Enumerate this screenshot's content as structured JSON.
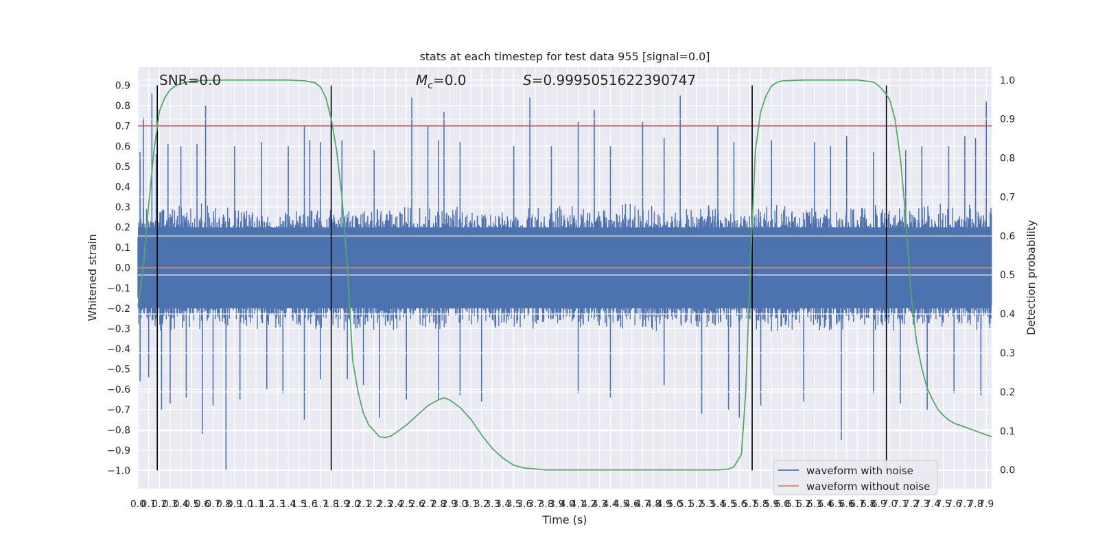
{
  "chart_data": {
    "type": "line",
    "title": "stats at each timestep for test data 955 [signal=0.0]",
    "xlabel": "Time (s)",
    "ylabel_left": "Whitened strain",
    "ylabel_right": "Detection probability",
    "xlim": [
      0.0,
      7.95
    ],
    "ylim_left": [
      -1.09,
      0.99
    ],
    "ylim_right": [
      -0.048,
      1.033
    ],
    "x_ticks": [
      "0.0",
      "0.1",
      "0.2",
      "0.3",
      "0.4",
      "0.5",
      "0.6",
      "0.7",
      "0.8",
      "0.9",
      "1.0",
      "1.1",
      "1.2",
      "1.3",
      "1.4",
      "1.5",
      "1.6",
      "1.7",
      "1.8",
      "1.9",
      "2.0",
      "2.1",
      "2.2",
      "2.3",
      "2.4",
      "2.5",
      "2.6",
      "2.7",
      "2.8",
      "2.9",
      "3.0",
      "3.1",
      "3.2",
      "3.3",
      "3.4",
      "3.5",
      "3.6",
      "3.7",
      "3.8",
      "3.9",
      "4.0",
      "4.1",
      "4.2",
      "4.3",
      "4.4",
      "4.5",
      "4.6",
      "4.7",
      "4.8",
      "4.9",
      "5.0",
      "5.1",
      "5.2",
      "5.3",
      "5.4",
      "5.5",
      "5.6",
      "5.7",
      "5.8",
      "5.9",
      "6.0",
      "6.1",
      "6.2",
      "6.3",
      "6.4",
      "6.5",
      "6.6",
      "6.7",
      "6.8",
      "6.9",
      "7.0",
      "7.1",
      "7.2",
      "7.3",
      "7.4",
      "7.5",
      "7.6",
      "7.7",
      "7.8",
      "7.9"
    ],
    "y_ticks_left": [
      "0.9",
      "0.8",
      "0.7",
      "0.6",
      "0.5",
      "0.4",
      "0.3",
      "0.2",
      "0.1",
      "0.0",
      "−0.1",
      "−0.2",
      "−0.3",
      "−0.4",
      "−0.5",
      "−0.6",
      "−0.7",
      "−0.8",
      "−0.9",
      "−1.0"
    ],
    "y_ticks_right": [
      "1.0",
      "0.9",
      "0.8",
      "0.7",
      "0.6",
      "0.5",
      "0.4",
      "0.3",
      "0.2",
      "0.1",
      "0.0"
    ],
    "annotations": {
      "snr": "SNR=0.0",
      "mc_symbol": "M",
      "mc_sub": "c",
      "mc_value": "=0.0",
      "s_symbol": "S",
      "s_value": "=0.9995051622390747"
    },
    "threshold": 0.7,
    "vlines": [
      0.18,
      1.8,
      5.72,
      6.97
    ],
    "legend": {
      "location": "lower right",
      "entries": [
        "waveform with noise",
        "waveform without noise"
      ]
    },
    "series": [
      {
        "name": "waveform with noise",
        "color": "#4c72b0",
        "axis": "left",
        "noise_amplitude": 0.32
      },
      {
        "name": "waveform without noise",
        "color": "#dd8452",
        "axis": "left",
        "values": [
          [
            0.0,
            0.0
          ],
          [
            7.95,
            0.0
          ]
        ]
      },
      {
        "color": "#55a868",
        "axis": "right",
        "points": [
          [
            0.0,
            0.42
          ],
          [
            0.05,
            0.52
          ],
          [
            0.1,
            0.68
          ],
          [
            0.15,
            0.82
          ],
          [
            0.2,
            0.92
          ],
          [
            0.25,
            0.955
          ],
          [
            0.3,
            0.975
          ],
          [
            0.35,
            0.985
          ],
          [
            0.4,
            0.991
          ],
          [
            0.5,
            0.997
          ],
          [
            0.6,
            0.999
          ],
          [
            0.8,
            1.0
          ],
          [
            1.0,
            1.0
          ],
          [
            1.2,
            1.0
          ],
          [
            1.4,
            1.0
          ],
          [
            1.55,
            0.998
          ],
          [
            1.65,
            0.993
          ],
          [
            1.7,
            0.982
          ],
          [
            1.75,
            0.955
          ],
          [
            1.8,
            0.9
          ],
          [
            1.85,
            0.82
          ],
          [
            1.9,
            0.7
          ],
          [
            1.95,
            0.52
          ],
          [
            2.0,
            0.28
          ],
          [
            2.05,
            0.2
          ],
          [
            2.1,
            0.145
          ],
          [
            2.15,
            0.115
          ],
          [
            2.2,
            0.1
          ],
          [
            2.25,
            0.085
          ],
          [
            2.3,
            0.083
          ],
          [
            2.35,
            0.086
          ],
          [
            2.4,
            0.095
          ],
          [
            2.5,
            0.115
          ],
          [
            2.6,
            0.14
          ],
          [
            2.7,
            0.165
          ],
          [
            2.8,
            0.18
          ],
          [
            2.85,
            0.185
          ],
          [
            2.9,
            0.18
          ],
          [
            3.0,
            0.16
          ],
          [
            3.1,
            0.13
          ],
          [
            3.2,
            0.09
          ],
          [
            3.3,
            0.055
          ],
          [
            3.4,
            0.03
          ],
          [
            3.5,
            0.012
          ],
          [
            3.6,
            0.005
          ],
          [
            3.8,
            0.0
          ],
          [
            4.5,
            0.0
          ],
          [
            5.0,
            0.0
          ],
          [
            5.4,
            0.0
          ],
          [
            5.5,
            0.002
          ],
          [
            5.55,
            0.008
          ],
          [
            5.62,
            0.04
          ],
          [
            5.66,
            0.2
          ],
          [
            5.7,
            0.5
          ],
          [
            5.75,
            0.82
          ],
          [
            5.8,
            0.92
          ],
          [
            5.85,
            0.96
          ],
          [
            5.9,
            0.985
          ],
          [
            5.95,
            0.994
          ],
          [
            6.0,
            0.998
          ],
          [
            6.2,
            1.0
          ],
          [
            6.5,
            1.0
          ],
          [
            6.7,
            1.0
          ],
          [
            6.85,
            0.995
          ],
          [
            6.9,
            0.985
          ],
          [
            6.95,
            0.97
          ],
          [
            7.0,
            0.95
          ],
          [
            7.05,
            0.9
          ],
          [
            7.1,
            0.8
          ],
          [
            7.15,
            0.65
          ],
          [
            7.2,
            0.45
          ],
          [
            7.25,
            0.33
          ],
          [
            7.3,
            0.26
          ],
          [
            7.35,
            0.21
          ],
          [
            7.4,
            0.18
          ],
          [
            7.45,
            0.155
          ],
          [
            7.5,
            0.14
          ],
          [
            7.55,
            0.128
          ],
          [
            7.6,
            0.12
          ],
          [
            7.7,
            0.11
          ],
          [
            7.8,
            0.1
          ],
          [
            7.9,
            0.09
          ],
          [
            7.95,
            0.085
          ]
        ]
      }
    ],
    "spikes_up": [
      [
        0.02,
        0.57
      ],
      [
        0.05,
        0.74
      ],
      [
        0.13,
        0.86
      ],
      [
        0.17,
        0.56
      ],
      [
        0.28,
        0.61
      ],
      [
        0.4,
        0.6
      ],
      [
        0.55,
        0.61
      ],
      [
        0.63,
        0.8
      ],
      [
        0.9,
        0.6
      ],
      [
        1.15,
        0.62
      ],
      [
        1.4,
        0.6
      ],
      [
        1.55,
        0.7
      ],
      [
        1.6,
        0.63
      ],
      [
        1.7,
        0.62
      ],
      [
        1.8,
        0.87
      ],
      [
        1.9,
        0.63
      ],
      [
        2.2,
        0.58
      ],
      [
        2.55,
        0.84
      ],
      [
        2.7,
        0.7
      ],
      [
        2.8,
        0.63
      ],
      [
        2.85,
        0.77
      ],
      [
        3.0,
        0.62
      ],
      [
        3.5,
        0.6
      ],
      [
        3.65,
        0.84
      ],
      [
        3.85,
        0.6
      ],
      [
        4.1,
        0.72
      ],
      [
        4.25,
        0.78
      ],
      [
        4.4,
        0.6
      ],
      [
        4.7,
        0.72
      ],
      [
        4.9,
        0.64
      ],
      [
        5.05,
        0.85
      ],
      [
        5.4,
        0.7
      ],
      [
        5.55,
        0.62
      ],
      [
        5.9,
        0.63
      ],
      [
        6.3,
        0.62
      ],
      [
        6.45,
        0.6
      ],
      [
        6.6,
        0.65
      ],
      [
        6.85,
        0.57
      ],
      [
        7.15,
        0.58
      ],
      [
        7.3,
        0.6
      ],
      [
        7.55,
        0.6
      ],
      [
        7.7,
        0.65
      ],
      [
        7.8,
        0.64
      ],
      [
        7.9,
        0.82
      ]
    ],
    "spikes_down": [
      [
        0.02,
        -0.56
      ],
      [
        0.1,
        -0.54
      ],
      [
        0.22,
        -0.7
      ],
      [
        0.3,
        -0.67
      ],
      [
        0.45,
        -0.64
      ],
      [
        0.6,
        -0.82
      ],
      [
        0.7,
        -0.68
      ],
      [
        0.82,
        -1.0
      ],
      [
        0.95,
        -0.65
      ],
      [
        1.2,
        -0.6
      ],
      [
        1.35,
        -0.62
      ],
      [
        1.55,
        -0.75
      ],
      [
        1.7,
        -0.55
      ],
      [
        1.95,
        -0.55
      ],
      [
        2.1,
        -0.58
      ],
      [
        2.25,
        -0.74
      ],
      [
        2.5,
        -0.65
      ],
      [
        2.8,
        -0.65
      ],
      [
        3.0,
        -0.63
      ],
      [
        3.2,
        -0.66
      ],
      [
        4.1,
        -0.62
      ],
      [
        4.4,
        -0.64
      ],
      [
        4.9,
        -0.58
      ],
      [
        5.25,
        -0.72
      ],
      [
        5.5,
        -0.7
      ],
      [
        5.6,
        -0.74
      ],
      [
        5.8,
        -0.68
      ],
      [
        6.2,
        -0.66
      ],
      [
        6.55,
        -0.85
      ],
      [
        6.85,
        -0.62
      ],
      [
        7.1,
        -0.67
      ],
      [
        7.35,
        -0.7
      ],
      [
        7.6,
        -0.62
      ],
      [
        7.85,
        -0.63
      ]
    ]
  }
}
